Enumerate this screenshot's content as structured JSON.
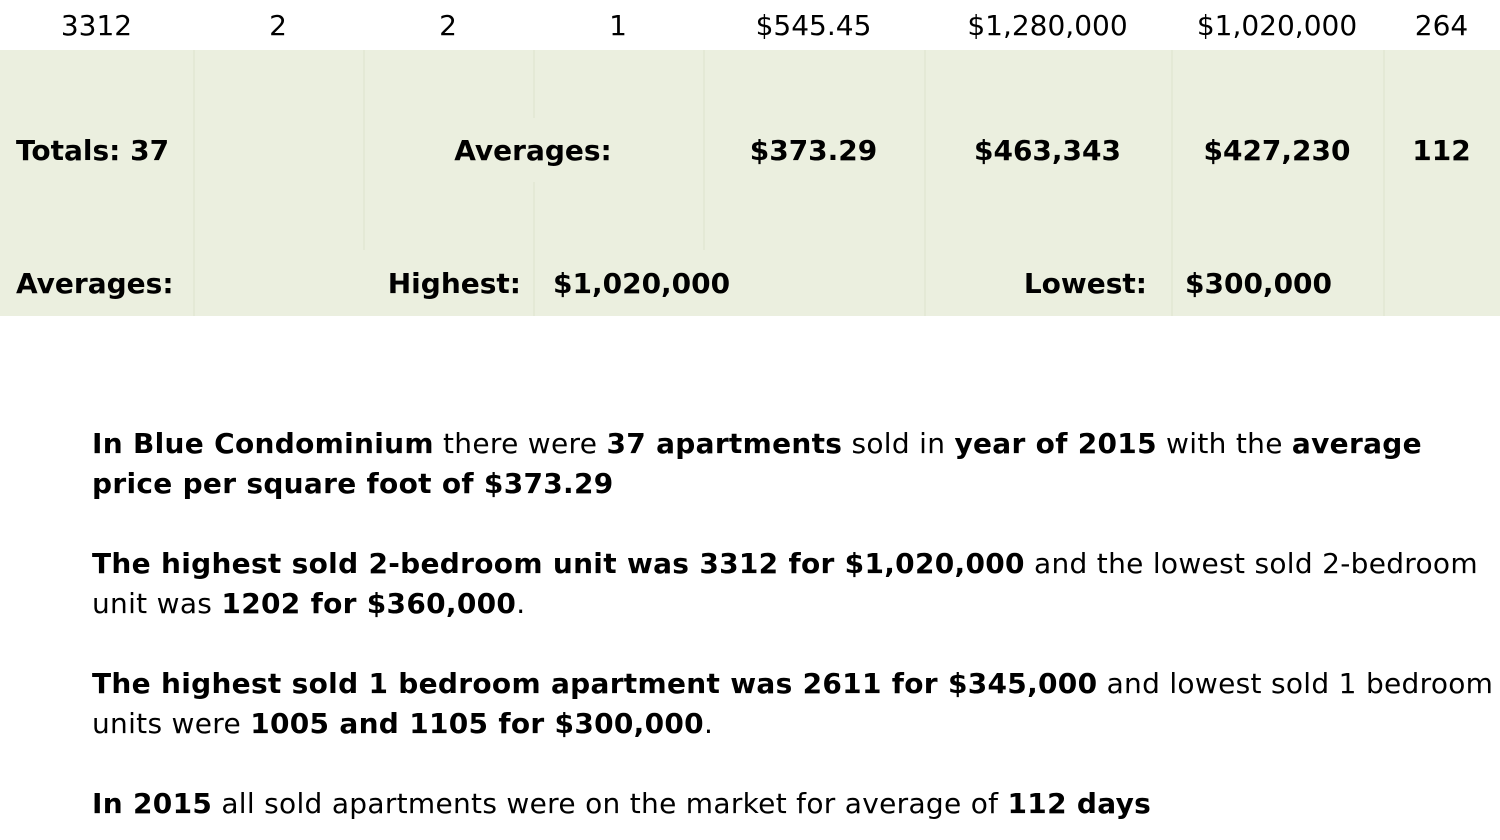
{
  "table": {
    "data_row": [
      "3312",
      "2",
      "2",
      "1",
      "$545.45",
      "$1,280,000",
      "$1,020,000",
      "264"
    ],
    "totals": {
      "label": "Totals: 37",
      "averages_label": "Averages:",
      "price_per_sqft": "$373.29",
      "list_price": "$463,343",
      "sold_price": "$427,230",
      "days": "112"
    },
    "averages_row": {
      "label": "Averages:",
      "highest_label": "Highest:",
      "highest_value": "$1,020,000",
      "lowest_label": "Lowest:",
      "lowest_value": "$300,000"
    }
  },
  "summary": {
    "p1": [
      {
        "t": "In Blue Condominium",
        "b": true
      },
      {
        "t": " there were ",
        "b": false
      },
      {
        "t": "37 apartments",
        "b": true
      },
      {
        "t": " sold in ",
        "b": false
      },
      {
        "t": "year of 2015",
        "b": true
      },
      {
        "t": " with the ",
        "b": false
      },
      {
        "t": "average price per square foot of $373.29",
        "b": true
      }
    ],
    "p2": [
      {
        "t": "The highest sold 2-bedroom unit was 3312 for $1,020,000",
        "b": true
      },
      {
        "t": " and the lowest sold 2-bedroom unit was ",
        "b": false
      },
      {
        "t": "1202 for $360,000",
        "b": true
      },
      {
        "t": ".",
        "b": false
      }
    ],
    "p3": [
      {
        "t": "The highest sold 1 bedroom apartment was 2611 for $345,000",
        "b": true
      },
      {
        "t": " and lowest sold 1 bedroom units were ",
        "b": false
      },
      {
        "t": "1005 and 1105 for $300,000",
        "b": true
      },
      {
        "t": ".",
        "b": false
      }
    ],
    "p4": [
      {
        "t": "In 2015",
        "b": true
      },
      {
        "t": " all sold apartments were on the market for average of ",
        "b": false
      },
      {
        "t": "112 days",
        "b": true
      }
    ]
  }
}
